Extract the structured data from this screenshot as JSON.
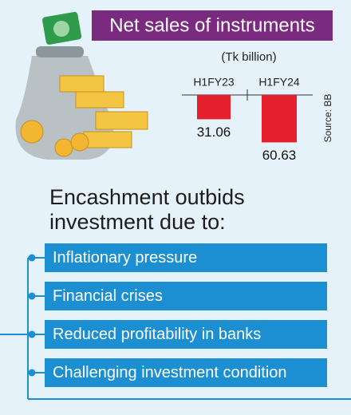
{
  "chart_data": {
    "type": "bar",
    "title": "Net sales of instruments",
    "subtitle": "(Tk billion)",
    "categories": [
      "H1FY23",
      "H1FY24"
    ],
    "values": [
      31.06,
      60.63
    ],
    "color": "#e3202b",
    "source": "Source: BB"
  },
  "heading": "Encashment outbids investment due to:",
  "reasons": [
    "Inflationary pressure",
    "Financial crises",
    "Reduced profitability in banks",
    "Challenging investment condition"
  ]
}
